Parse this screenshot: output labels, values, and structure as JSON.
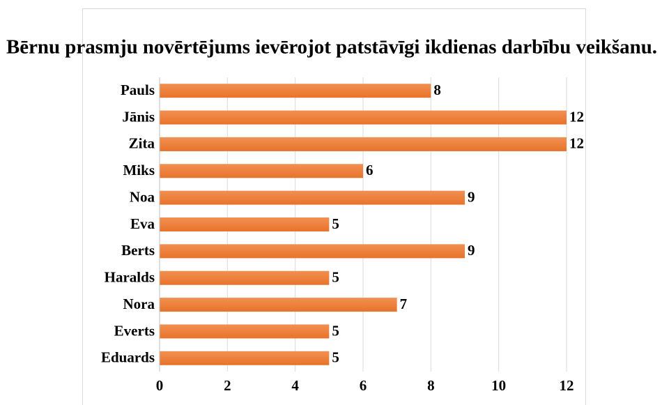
{
  "chart_data": {
    "type": "bar",
    "orientation": "horizontal",
    "title": "Bērnu prasmju novērtējums ievērojot patstāvīgi ikdienas darbību veikšanu.",
    "categories": [
      "Pauls",
      "Jānis",
      "Zita",
      "Miks",
      "Noa",
      "Eva",
      "Berts",
      "Haralds",
      "Nora",
      "Everts",
      "Eduards"
    ],
    "values": [
      8,
      12,
      12,
      6,
      9,
      5,
      9,
      5,
      7,
      5,
      5
    ],
    "color": "#ed7d31",
    "xlim": [
      0,
      12
    ],
    "xticks": [
      0,
      2,
      4,
      6,
      8,
      10,
      12
    ],
    "grid": true
  }
}
